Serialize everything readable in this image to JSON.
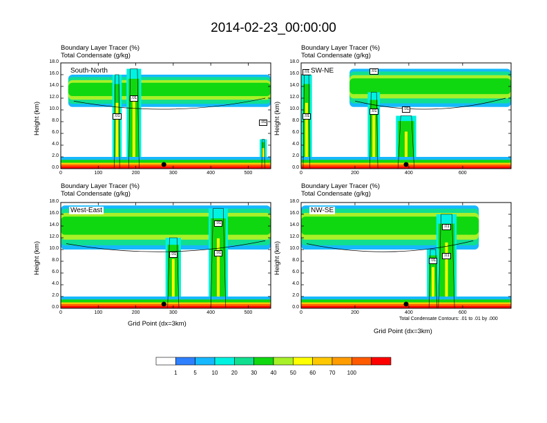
{
  "main_title": "2014-02-23_00:00:00",
  "colors": {
    "levels": [
      "#ffffff",
      "#2f80ff",
      "#16b8ff",
      "#00f2e0",
      "#10df90",
      "#10d810",
      "#a8f028",
      "#ffff00",
      "#ffc800",
      "#ff9c00",
      "#ff5a00",
      "#ff0000"
    ],
    "contour": "#000000"
  },
  "panel_titles": {
    "line1": "Boundary Layer Tracer   (%)",
    "line2": "Total Condensate   (g/kg)"
  },
  "ylabel": "Height (km)",
  "xlabel": "Grid Point (dx=3km)",
  "footnote": "Total Condensate Contours: .01 to .01 by .000",
  "legend": {
    "labels": [
      "1",
      "5",
      "10",
      "20",
      "30",
      "40",
      "50",
      "60",
      "70",
      "100"
    ]
  },
  "chart_data": [
    {
      "type": "heatmap",
      "name": "South-North",
      "xlabel": "",
      "ylabel": "Height (km)",
      "xlim": [
        0,
        560
      ],
      "ylim": [
        0,
        18
      ],
      "xticks": [
        "0",
        "100",
        "200",
        "300",
        "400",
        "500"
      ],
      "yticks": [
        "0.0",
        "2.0",
        "4.0",
        "6.0",
        "8.0",
        "10.0",
        "12.0",
        "14.0",
        "16.0",
        "18.0"
      ],
      "contour_labels": [
        ".01",
        ".01",
        ".01"
      ],
      "anvil": {
        "x": [
          20,
          560
        ],
        "base_km": 10.5,
        "top_km": 16.0
      },
      "updrafts": [
        {
          "x": 150,
          "w": 14,
          "top_km": 16
        },
        {
          "x": 195,
          "w": 28,
          "top_km": 17
        },
        {
          "x": 540,
          "w": 8,
          "top_km": 5
        }
      ],
      "marker_x": 275
    },
    {
      "type": "heatmap",
      "name": "SW-NE",
      "xlabel": "",
      "ylabel": "Height (km)",
      "xlim": [
        0,
        780
      ],
      "ylim": [
        0,
        18
      ],
      "xticks": [
        "0",
        "200",
        "400",
        "600"
      ],
      "yticks": [
        "0.0",
        "2.0",
        "4.0",
        "6.0",
        "8.0",
        "10.0",
        "12.0",
        "14.0",
        "16.0",
        "18.0"
      ],
      "contour_labels": [
        ".01",
        ".01",
        ".01",
        ".01",
        ".01"
      ],
      "anvil": {
        "x": [
          180,
          780
        ],
        "base_km": 10.5,
        "top_km": 17.0
      },
      "updrafts": [
        {
          "x": 20,
          "w": 25,
          "top_km": 16
        },
        {
          "x": 270,
          "w": 30,
          "top_km": 13
        },
        {
          "x": 390,
          "w": 60,
          "top_km": 9
        }
      ],
      "marker_x": 390
    },
    {
      "type": "heatmap",
      "name": "West-East",
      "xlabel": "Grid Point (dx=3km)",
      "ylabel": "Height (km)",
      "xlim": [
        0,
        560
      ],
      "ylim": [
        0,
        18
      ],
      "xticks": [
        "0",
        "100",
        "200",
        "300",
        "400",
        "500"
      ],
      "yticks": [
        "0.0",
        "2.0",
        "4.0",
        "6.0",
        "8.0",
        "10.0",
        "12.0",
        "14.0",
        "16.0",
        "18.0"
      ],
      "contour_labels": [
        ".01",
        ".01",
        ".01"
      ],
      "anvil": {
        "x": [
          0,
          560
        ],
        "base_km": 10.0,
        "top_km": 17.5
      },
      "updrafts": [
        {
          "x": 420,
          "w": 40,
          "top_km": 17
        },
        {
          "x": 300,
          "w": 30,
          "top_km": 12
        }
      ],
      "marker_x": 275
    },
    {
      "type": "heatmap",
      "name": "NW-SE",
      "xlabel": "Grid Point (dx=3km)",
      "ylabel": "Height (km)",
      "xlim": [
        0,
        780
      ],
      "ylim": [
        0,
        18
      ],
      "xticks": [
        "0",
        "200",
        "400",
        "600"
      ],
      "yticks": [
        "0.0",
        "2.0",
        "4.0",
        "6.0",
        "8.0",
        "10.0",
        "12.0",
        "14.0",
        "16.0",
        "18.0"
      ],
      "contour_labels": [
        ".01",
        ".01",
        ".01"
      ],
      "anvil": {
        "x": [
          0,
          660
        ],
        "base_km": 10.0,
        "top_km": 17.5
      },
      "updrafts": [
        {
          "x": 540,
          "w": 60,
          "top_km": 16
        },
        {
          "x": 490,
          "w": 30,
          "top_km": 10
        }
      ],
      "marker_x": 390
    }
  ]
}
